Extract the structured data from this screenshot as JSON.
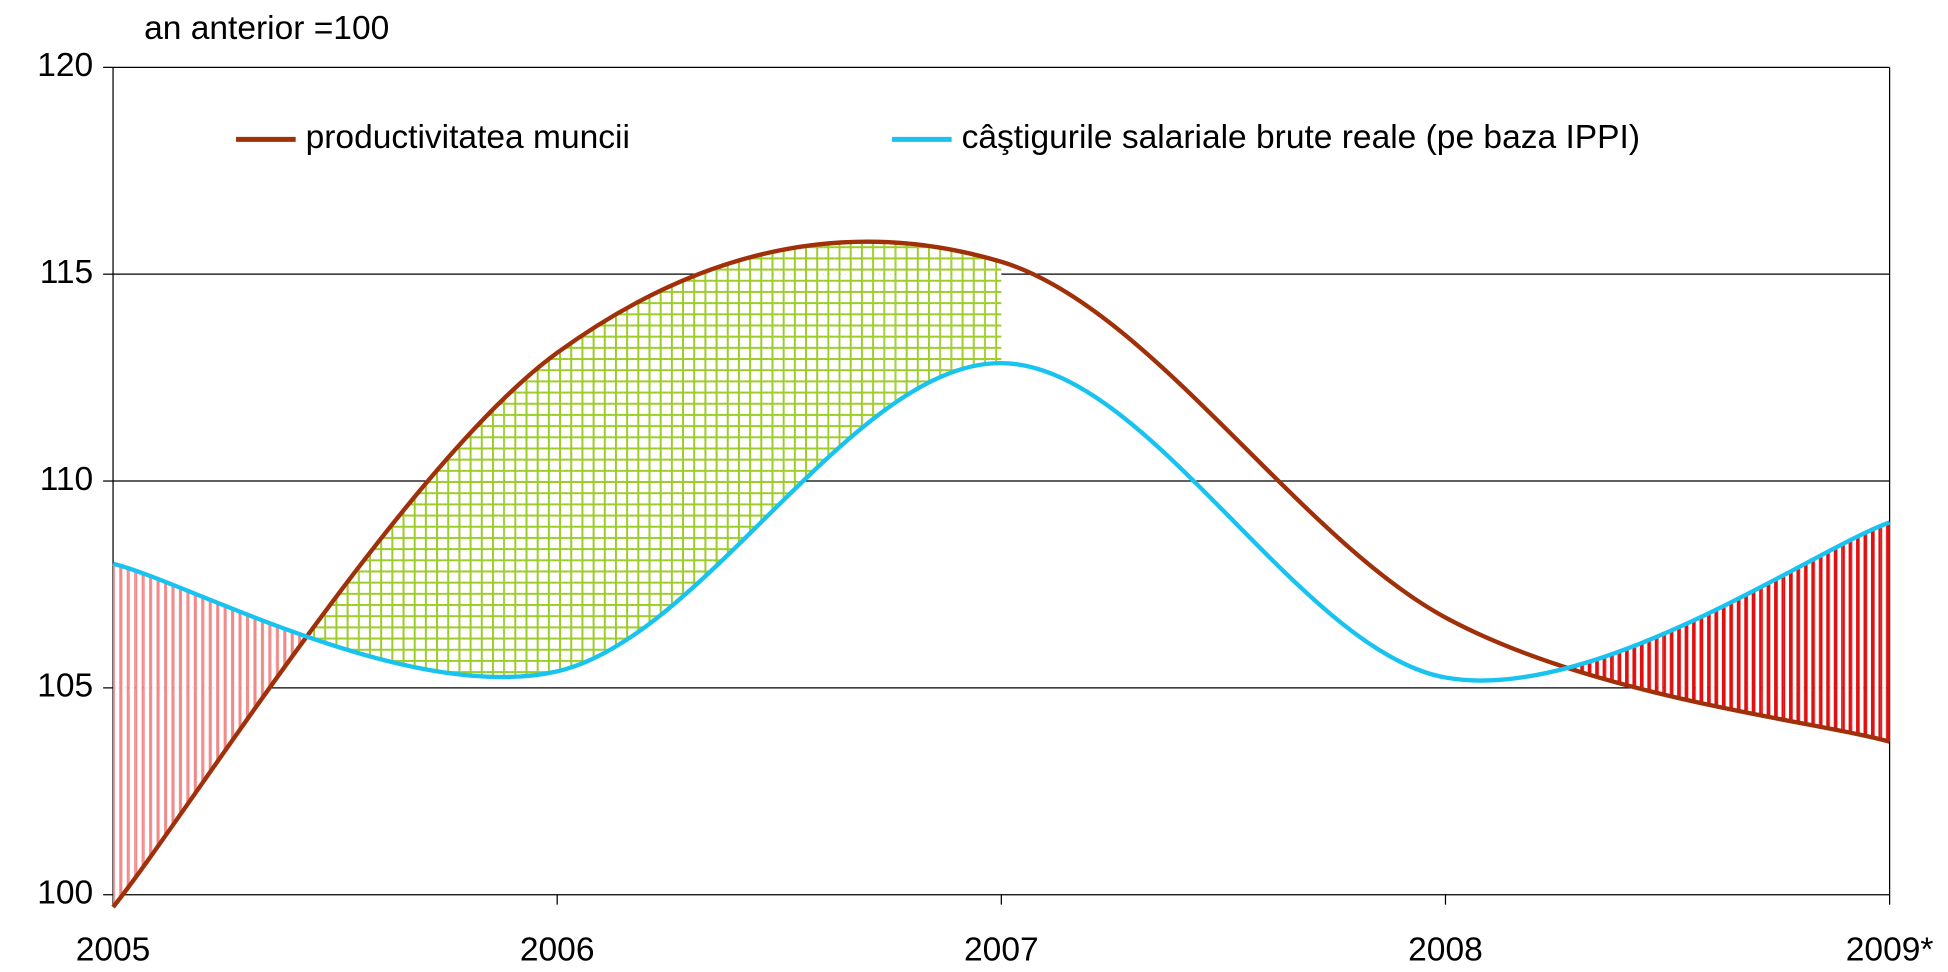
{
  "chart_data": {
    "type": "line",
    "y_label": "an anterior =100",
    "categories": [
      "2005",
      "2006",
      "2007",
      "2008",
      "2009*"
    ],
    "series": [
      {
        "name": "productivitatea muncii",
        "color": "#a0300a",
        "values": [
          99.7,
          113.1,
          115.3,
          106.7,
          103.7
        ]
      },
      {
        "name": "câştigurile salariale brute reale (pe baza IPPI)",
        "color": "#19c3f0",
        "values": [
          108.0,
          105.4,
          112.85,
          105.25,
          109.0
        ]
      }
    ],
    "ylim": [
      100,
      120
    ],
    "yticks": [
      100,
      105,
      110,
      115,
      120
    ],
    "grid": true,
    "smooth": true,
    "legend": "top"
  }
}
